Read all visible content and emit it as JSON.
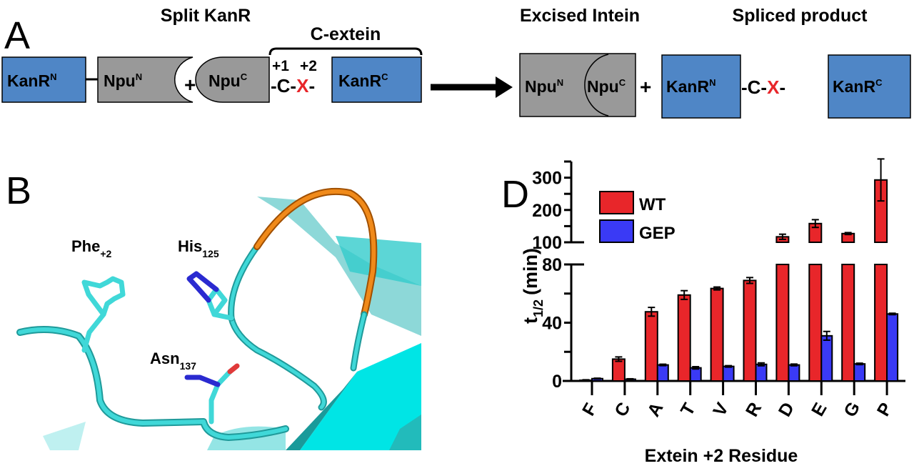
{
  "panel_a": {
    "label": "A",
    "title_split": "Split KanR",
    "title_cextein": "C-extein",
    "title_excised": "Excised Intein",
    "title_spliced": "Spliced product",
    "kanr": "KanR",
    "npu": "Npu",
    "sup_n": "N",
    "sup_c": "C",
    "plus": "+",
    "pos1": "+1",
    "pos2": "+2",
    "dash_c_dash": "-C-",
    "x_residue": "X",
    "dash": "-",
    "colors": {
      "kanr_box": "#4f86c6",
      "npu_box": "#999999",
      "x_residue": "#e8262a"
    }
  },
  "panel_b": {
    "label": "B",
    "residues": [
      {
        "name": "Phe",
        "sub": "+2"
      },
      {
        "name": "His",
        "sub": "125"
      },
      {
        "name": "Asn",
        "sub": "137"
      }
    ],
    "colors": {
      "backbone": "#33cccc",
      "loop": "#e07a10",
      "nitrogen": "#2a2ad0",
      "oxygen": "#e03a3a"
    }
  },
  "panel_d": {
    "label": "D"
  },
  "chart_data": {
    "type": "bar",
    "categories": [
      "F",
      "C",
      "A",
      "T",
      "V",
      "R",
      "D",
      "E",
      "G",
      "P"
    ],
    "series": [
      {
        "name": "WT",
        "color": "#e8262a",
        "values": [
          0.5,
          15,
          47.5,
          59,
          63.5,
          69,
          117,
          158,
          127,
          293
        ],
        "errors": [
          0.3,
          1.5,
          3,
          3,
          1,
          2,
          8,
          12,
          3,
          65
        ]
      },
      {
        "name": "GEP",
        "color": "#3a3af5",
        "values": [
          1.6,
          1.2,
          11,
          9,
          10,
          11.4,
          11,
          31,
          11.7,
          46
        ],
        "errors": [
          0.3,
          0.3,
          0.5,
          0.8,
          0.5,
          1,
          0.6,
          3,
          0.5,
          0.5
        ]
      }
    ],
    "xlabel": "Extein +2 Residue",
    "ylabel": {
      "base": "t",
      "sub": "1/2",
      "unit": "(min)"
    },
    "y_axis_break": true,
    "ylim_lower": [
      0,
      80
    ],
    "ylim_upper": [
      100,
      350
    ],
    "yticks_lower": [
      "0",
      "40",
      "80"
    ],
    "yticks_upper": [
      "100",
      "200",
      "300"
    ],
    "legend": "top-left",
    "grid": false
  }
}
